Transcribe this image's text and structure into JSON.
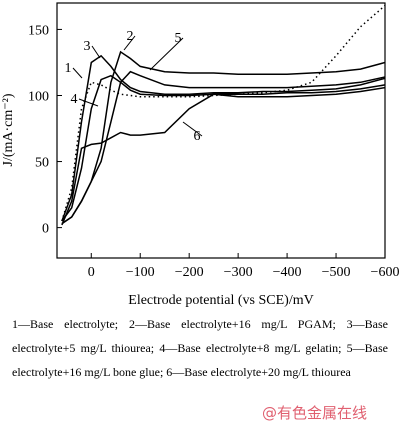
{
  "chart_data": {
    "type": "line",
    "xlabel": "Electrode potential (vs SCE)/mV",
    "ylabel": "J/(mA·cm⁻²)",
    "caption": "1—Base electrolyte; 2—Base electrolyte+16 mg/L PGAM; 3—Base electrolyte+5 mg/L thiourea; 4—Base electrolyte+8 mg/L gelatin; 5—Base electrolyte+16 mg/L bone glue; 6—Base electrolyte+20 mg/L thiourea",
    "watermark": "@有色金属在线",
    "x": [
      60,
      40,
      20,
      0,
      -20,
      -40,
      -60,
      -80,
      -100,
      -150,
      -200,
      -250,
      -300,
      -350,
      -400,
      -450,
      -500,
      -550,
      -600
    ],
    "series": [
      {
        "name": "1",
        "color": "#000",
        "style": "solid",
        "values": [
          5,
          15,
          45,
          90,
          112,
          115,
          110,
          104,
          101,
          100,
          100,
          101,
          101,
          101,
          102,
          102,
          103,
          105,
          108
        ]
      },
      {
        "name": "2",
        "color": "#000",
        "style": "solid",
        "values": [
          3,
          8,
          20,
          35,
          60,
          110,
          133,
          128,
          122,
          118,
          117,
          117,
          116,
          116,
          116,
          117,
          118,
          120,
          125
        ]
      },
      {
        "name": "3",
        "color": "#000",
        "style": "solid",
        "values": [
          5,
          25,
          80,
          125,
          130,
          122,
          112,
          106,
          103,
          101,
          101,
          102,
          102,
          103,
          103,
          104,
          105,
          108,
          113
        ]
      },
      {
        "name": "4",
        "color": "#000",
        "style": "dotted",
        "values": [
          5,
          30,
          90,
          110,
          108,
          104,
          101,
          100,
          99,
          99,
          99,
          100,
          101,
          102,
          104,
          110,
          130,
          152,
          168
        ]
      },
      {
        "name": "5",
        "color": "#000",
        "style": "solid",
        "values": [
          3,
          8,
          20,
          35,
          50,
          80,
          110,
          118,
          115,
          108,
          106,
          106,
          106,
          106,
          106,
          107,
          108,
          110,
          114
        ]
      },
      {
        "name": "6",
        "color": "#000",
        "style": "solid",
        "values": [
          2,
          20,
          60,
          63,
          64,
          68,
          72,
          70,
          70,
          72,
          90,
          101,
          99,
          99,
          99,
          100,
          101,
          103,
          106
        ]
      }
    ],
    "xlim": [
      70,
      -600
    ],
    "xticks": [
      0,
      {
        "value": -100,
        "label": "−100"
      },
      {
        "value": -200,
        "label": "−200"
      },
      {
        "value": -300,
        "label": "−300"
      },
      {
        "value": -400,
        "label": "−400"
      },
      {
        "value": -500,
        "label": "−500"
      },
      {
        "value": -600,
        "label": "−600"
      }
    ],
    "ylim": [
      -23,
      170
    ],
    "yticks": [
      0,
      50,
      100,
      150
    ],
    "grid": false
  }
}
